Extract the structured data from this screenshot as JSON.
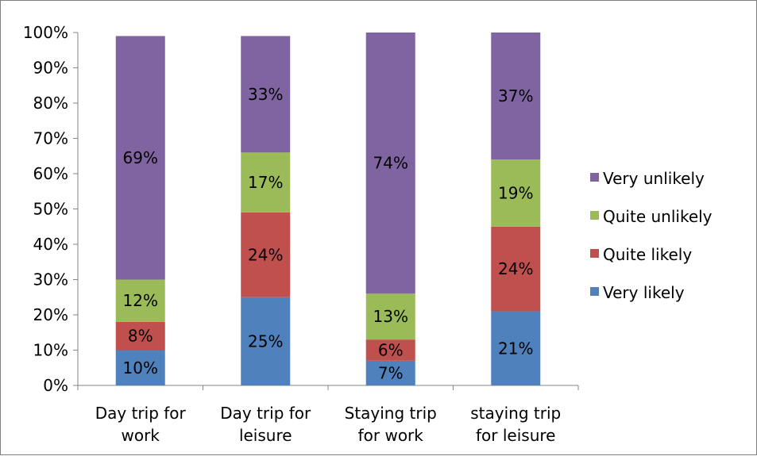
{
  "chart_data": {
    "type": "bar",
    "stacked": true,
    "categories": [
      [
        "Day trip for",
        "work"
      ],
      [
        "Day trip for",
        "leisure"
      ],
      [
        "Staying trip",
        "for work"
      ],
      [
        "staying trip",
        "for leisure"
      ]
    ],
    "series": [
      {
        "name": "Very likely",
        "color": "#4f81bd",
        "values": [
          10,
          25,
          7,
          21
        ],
        "labels": [
          "10%",
          "25%",
          "7%",
          "21%"
        ]
      },
      {
        "name": "Quite likely",
        "color": "#c0504d",
        "values": [
          8,
          24,
          6,
          24
        ],
        "labels": [
          "8%",
          "24%",
          "6%",
          "24%"
        ]
      },
      {
        "name": "Quite unlikely",
        "color": "#9bbb59",
        "values": [
          12,
          17,
          13,
          19
        ],
        "labels": [
          "12%",
          "17%",
          "13%",
          "19%"
        ]
      },
      {
        "name": "Very unlikely",
        "color": "#8064a2",
        "values": [
          69,
          33,
          74,
          37
        ],
        "labels": [
          "69%",
          "33%",
          "74%",
          "37%"
        ]
      }
    ],
    "ylim": [
      0,
      100
    ],
    "yticks": [
      0,
      10,
      20,
      30,
      40,
      50,
      60,
      70,
      80,
      90,
      100
    ],
    "ytick_labels": [
      "0%",
      "10%",
      "20%",
      "30%",
      "40%",
      "50%",
      "60%",
      "70%",
      "80%",
      "90%",
      "100%"
    ],
    "grid": false,
    "legend": {
      "position": "right",
      "order": [
        "Very unlikely",
        "Quite unlikely",
        "Quite likely",
        "Very likely"
      ]
    }
  }
}
